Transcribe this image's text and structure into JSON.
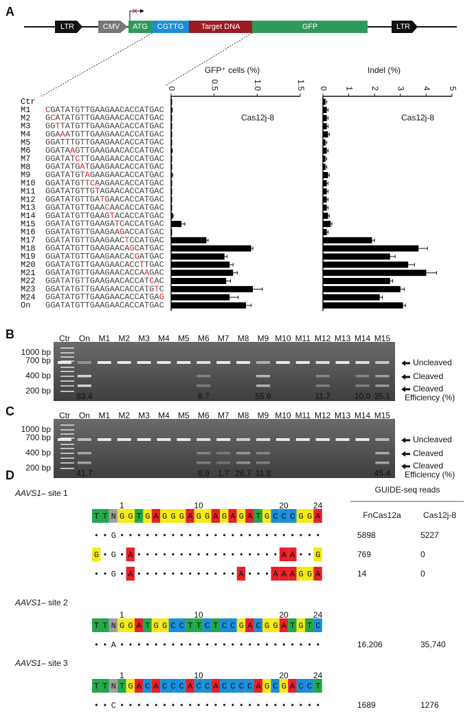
{
  "panels": {
    "a": "A",
    "b": "B",
    "c": "C",
    "d": "D"
  },
  "construct": [
    "LTR",
    "CMV",
    "ATG",
    "CGTTG",
    "Target DNA",
    "GFP",
    "LTR"
  ],
  "sequences": [
    null,
    {
      "mut": "C",
      "post": "GATATGTTGAAGAACACCATGAC"
    },
    {
      "pre": "G",
      "mut": "C",
      "post": "ATATGTTGAAGAACACCATGAC"
    },
    {
      "pre": "GG",
      "mut": "T",
      "post": "TATGTTGAAGAACACCATGAC"
    },
    {
      "pre": "GGA",
      "mut": "A",
      "post": "ATGTTGAAGAACACCATGAC"
    },
    {
      "pre": "GGAT",
      "mut": "T",
      "post": "TGTTGAAGAACACCATGAC"
    },
    {
      "pre": "GGATA",
      "mut": "A",
      "post": "GTTGAAGAACACCATGAC"
    },
    {
      "pre": "GGATAT",
      "mut": "C",
      "post": "TTGAAGAACACCATGAC"
    },
    {
      "pre": "GGATATG",
      "mut": "A",
      "post": "TGAAGAACACCATGAC"
    },
    {
      "pre": "GGATATGT",
      "mut": "A",
      "post": "GAAGAACACCATGAC"
    },
    {
      "pre": "GGATATGTT",
      "mut": "C",
      "post": "AAGAACACCATGAC"
    },
    {
      "pre": "GGATATGTTG",
      "mut": "T",
      "post": "AGAACACCATGAC"
    },
    {
      "pre": "GGATATGTTGA",
      "mut": "T",
      "post": "GAACACCATGAC"
    },
    {
      "pre": "GGATATGTTGAA",
      "mut": "C",
      "post": "AACACCATGAC"
    },
    {
      "pre": "GGATATGTTGAAG",
      "mut": "T",
      "post": "ACACCATGAC"
    },
    {
      "pre": "GGATATGTTGAAGA",
      "mut": "T",
      "post": "CACCATGAC"
    },
    {
      "pre": "GGATATGTTGAAGAA",
      "mut": "G",
      "post": "ACCATGAC"
    },
    {
      "pre": "GGATATGTTGAAGAAC",
      "mut": "T",
      "post": "CCATGAC"
    },
    {
      "pre": "GGATATGTTGAAGAACA",
      "mut": "G",
      "post": "CATGAC"
    },
    {
      "pre": "GGATATGTTGAAGAACAC",
      "mut": "G",
      "post": "ATGAC"
    },
    {
      "pre": "GGATATGTTGAAGAACACC",
      "mut": "T",
      "post": "TGAC"
    },
    {
      "pre": "GGATATGTTGAAGAACACCA",
      "mut": "A",
      "post": "GAC"
    },
    {
      "pre": "GGATATGTTGAAGAACACCAT",
      "mut": "C",
      "post": "AC"
    },
    {
      "pre": "GGATATGTTGAAGAACACCATG",
      "mut": "T",
      "post": "C"
    },
    {
      "pre": "GGATATGTTGAAGAACACCATGA",
      "mut": "G"
    },
    {
      "pre": "GGATATGTTGAAGAACACCATGAC"
    }
  ],
  "chart_data": [
    {
      "type": "bar",
      "title": "Cas12j-8",
      "xlabel": "GFP⁺ cells (%)",
      "categories": [
        "Ctr",
        "M1",
        "M2",
        "M3",
        "M4",
        "M5",
        "M6",
        "M7",
        "M8",
        "M9",
        "M10",
        "M11",
        "M12",
        "M13",
        "M14",
        "M15",
        "M16",
        "M17",
        "M18",
        "M19",
        "M20",
        "M21",
        "M22",
        "M23",
        "M24",
        "On"
      ],
      "values": [
        0,
        0.01,
        0.01,
        0,
        0,
        0,
        0.01,
        0,
        0,
        0.01,
        0,
        0,
        0,
        0,
        0.02,
        0.12,
        0.01,
        0.41,
        0.93,
        0.62,
        0.68,
        0.72,
        0.64,
        0.95,
        0.68,
        0.87
      ],
      "errors": [
        0,
        0.005,
        0,
        0,
        0,
        0,
        0.005,
        0,
        0,
        0.01,
        0,
        0,
        0,
        0,
        0.005,
        0.04,
        0,
        0.02,
        0.02,
        0.03,
        0.04,
        0.05,
        0.05,
        0.11,
        0.1,
        0.06
      ],
      "color": "#000000",
      "xlim": [
        0,
        1.5
      ],
      "xticks": [
        0,
        0.5,
        {
          "value": 1,
          "label": "1.0"
        },
        1.5
      ]
    },
    {
      "type": "bar",
      "title": "Cas12j-8",
      "xlabel": "Indel (%)",
      "values": [
        0.1,
        0.15,
        0.15,
        0.15,
        0.2,
        0.1,
        0.15,
        0.1,
        0.1,
        0.2,
        0.15,
        0.15,
        0.15,
        0.15,
        0.2,
        0.3,
        0.15,
        1.9,
        3.7,
        2.6,
        3.3,
        4.0,
        2.6,
        3.0,
        2.2,
        3.1
      ],
      "errors": [
        0.05,
        0.05,
        0.05,
        0.05,
        0.05,
        0.05,
        0.05,
        0.05,
        0.05,
        0.05,
        0.05,
        0.05,
        0.05,
        0.05,
        0.05,
        0.05,
        0.05,
        0.1,
        0.35,
        0.2,
        0.25,
        0.4,
        0.1,
        0.15,
        0.1,
        0.1
      ],
      "color": "#000000",
      "xlim": [
        0,
        5
      ],
      "xticks": [
        0,
        1,
        2,
        3,
        4,
        5
      ]
    }
  ],
  "gels": [
    {
      "lanes": [
        "Ctr",
        "On",
        "M1",
        "M2",
        "M3",
        "M4",
        "M5",
        "M6",
        "M7",
        "M8",
        "M9",
        "M10",
        "M11",
        "M12",
        "M13",
        "M14",
        "M15"
      ],
      "markers": [
        "1000 bp",
        "700 bp",
        "400 bp",
        "200 bp"
      ],
      "bands": [
        "Uncleaved",
        "Cleaved",
        "Cleaved"
      ],
      "efficiency_label": "Efficiency (%)",
      "efficiency": [
        null,
        "83.4",
        null,
        null,
        null,
        null,
        null,
        "8.7",
        null,
        null,
        "55.9",
        null,
        null,
        "11.7",
        null,
        "10.0",
        "35.1"
      ]
    },
    {
      "lanes": [
        "Ctr",
        "On",
        "M1",
        "M2",
        "M3",
        "M4",
        "M5",
        "M6",
        "M7",
        "M8",
        "M9",
        "M10",
        "M11",
        "M12",
        "M13",
        "M14",
        "M15"
      ],
      "markers": [
        "1000 bp",
        "700 bp",
        "400 bp",
        "200 bp"
      ],
      "bands": [
        "Uncleaved",
        "Cleaved",
        "Cleaved"
      ],
      "efficiency_label": "Efficiency (%)",
      "efficiency": [
        null,
        "41.7",
        null,
        null,
        null,
        null,
        null,
        "8.9",
        "1.7",
        "26.7",
        "11.8",
        null,
        null,
        null,
        null,
        null,
        "45.4"
      ]
    }
  ],
  "guide_seq": {
    "header": "GUIDE-seq reads",
    "columns": [
      "FnCas12a",
      "Cas12j-8"
    ],
    "sites": [
      {
        "gene": "AAVS1",
        "name": "– site 1",
        "positions": [
          1,
          10,
          20,
          24
        ],
        "ref": "TTNGGTGAGGGAGGAGAGATGCCCGGA",
        "offtargets": [
          "••G••••••••••••••••••••••••",
          "G•G•A•••••••••••••••••AA••G",
          "••G•A••••••••••••A•••AAAGGA"
        ],
        "reads": [
          [
            "5898",
            "5227"
          ],
          [
            "769",
            "0"
          ],
          [
            "14",
            "0"
          ]
        ]
      },
      {
        "gene": "AAVS1",
        "name": "– site 2",
        "positions": [
          1,
          10,
          20,
          24
        ],
        "ref": "TTNGGATGGCCTTCTCCGACGGATGTC",
        "offtargets": [
          "••A••••••••••••••••••••••••"
        ],
        "reads": [
          [
            "16,206",
            "35,740"
          ]
        ]
      },
      {
        "gene": "AAVS1",
        "name": "– site 3",
        "positions": [
          1,
          10,
          20,
          24
        ],
        "ref": "TTNTGACACCCACCACCCCAGCGACCT",
        "offtargets": [
          "••C••••••••••••••••••••••••"
        ],
        "reads": [
          [
            "1689",
            "1276"
          ]
        ]
      }
    ]
  }
}
